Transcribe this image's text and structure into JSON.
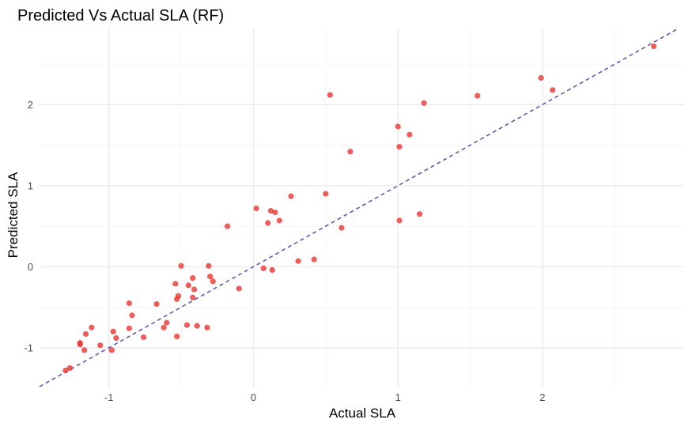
{
  "chart_data": {
    "type": "scatter",
    "title": "Predicted Vs Actual SLA (RF)",
    "xlabel": "Actual SLA",
    "ylabel": "Predicted SLA",
    "xlim": [
      -1.48,
      2.98
    ],
    "ylim": [
      -1.49,
      2.94
    ],
    "x_ticks": [
      -1,
      0,
      1,
      2
    ],
    "y_ticks": [
      -1,
      0,
      1,
      2
    ],
    "x_tick_labels": [
      "-1",
      "0",
      "1",
      "2"
    ],
    "y_tick_labels": [
      "-1",
      "0",
      "1",
      "2"
    ],
    "x_minor": [
      -0.5,
      0.5,
      1.5,
      2.5
    ],
    "y_minor": [
      -0.5,
      0.5,
      1.5,
      2.5
    ],
    "grid": true,
    "point_color": "#e8302a",
    "line_color": "#5b4ea8",
    "reference_line": {
      "style": "dashed",
      "slope": 1,
      "intercept": 0
    },
    "points": [
      {
        "x": -1.3,
        "y": -1.28
      },
      {
        "x": -1.27,
        "y": -1.25
      },
      {
        "x": -1.2,
        "y": -0.94
      },
      {
        "x": -1.2,
        "y": -0.96
      },
      {
        "x": -1.17,
        "y": -1.03
      },
      {
        "x": -1.16,
        "y": -0.83
      },
      {
        "x": -1.12,
        "y": -0.75
      },
      {
        "x": -1.06,
        "y": -0.97
      },
      {
        "x": -0.98,
        "y": -1.03
      },
      {
        "x": -0.97,
        "y": -0.8
      },
      {
        "x": -0.95,
        "y": -0.88
      },
      {
        "x": -0.86,
        "y": -0.45
      },
      {
        "x": -0.86,
        "y": -0.76
      },
      {
        "x": -0.84,
        "y": -0.6
      },
      {
        "x": -0.76,
        "y": -0.87
      },
      {
        "x": -0.67,
        "y": -0.46
      },
      {
        "x": -0.62,
        "y": -0.75
      },
      {
        "x": -0.6,
        "y": -0.69
      },
      {
        "x": -0.54,
        "y": -0.21
      },
      {
        "x": -0.53,
        "y": -0.4
      },
      {
        "x": -0.53,
        "y": -0.86
      },
      {
        "x": -0.52,
        "y": -0.36
      },
      {
        "x": -0.5,
        "y": 0.01
      },
      {
        "x": -0.46,
        "y": -0.72
      },
      {
        "x": -0.45,
        "y": -0.23
      },
      {
        "x": -0.42,
        "y": -0.14
      },
      {
        "x": -0.42,
        "y": -0.38
      },
      {
        "x": -0.41,
        "y": -0.28
      },
      {
        "x": -0.39,
        "y": -0.73
      },
      {
        "x": -0.32,
        "y": -0.75
      },
      {
        "x": -0.31,
        "y": 0.01
      },
      {
        "x": -0.3,
        "y": -0.12
      },
      {
        "x": -0.28,
        "y": -0.18
      },
      {
        "x": -0.1,
        "y": -0.27
      },
      {
        "x": -0.18,
        "y": 0.5
      },
      {
        "x": 0.02,
        "y": 0.72
      },
      {
        "x": 0.07,
        "y": -0.02
      },
      {
        "x": 0.1,
        "y": 0.54
      },
      {
        "x": 0.12,
        "y": 0.69
      },
      {
        "x": 0.13,
        "y": -0.04
      },
      {
        "x": 0.15,
        "y": 0.67
      },
      {
        "x": 0.18,
        "y": 0.57
      },
      {
        "x": 0.26,
        "y": 0.87
      },
      {
        "x": 0.31,
        "y": 0.07
      },
      {
        "x": 0.42,
        "y": 0.09
      },
      {
        "x": 0.5,
        "y": 0.9
      },
      {
        "x": 0.53,
        "y": 2.12
      },
      {
        "x": 0.61,
        "y": 0.48
      },
      {
        "x": 0.67,
        "y": 1.42
      },
      {
        "x": 1.0,
        "y": 1.73
      },
      {
        "x": 1.01,
        "y": 1.48
      },
      {
        "x": 1.01,
        "y": 0.57
      },
      {
        "x": 1.08,
        "y": 1.63
      },
      {
        "x": 1.15,
        "y": 0.65
      },
      {
        "x": 1.18,
        "y": 2.02
      },
      {
        "x": 1.55,
        "y": 2.11
      },
      {
        "x": 1.99,
        "y": 2.33
      },
      {
        "x": 2.07,
        "y": 2.18
      },
      {
        "x": 2.77,
        "y": 2.72
      }
    ]
  }
}
